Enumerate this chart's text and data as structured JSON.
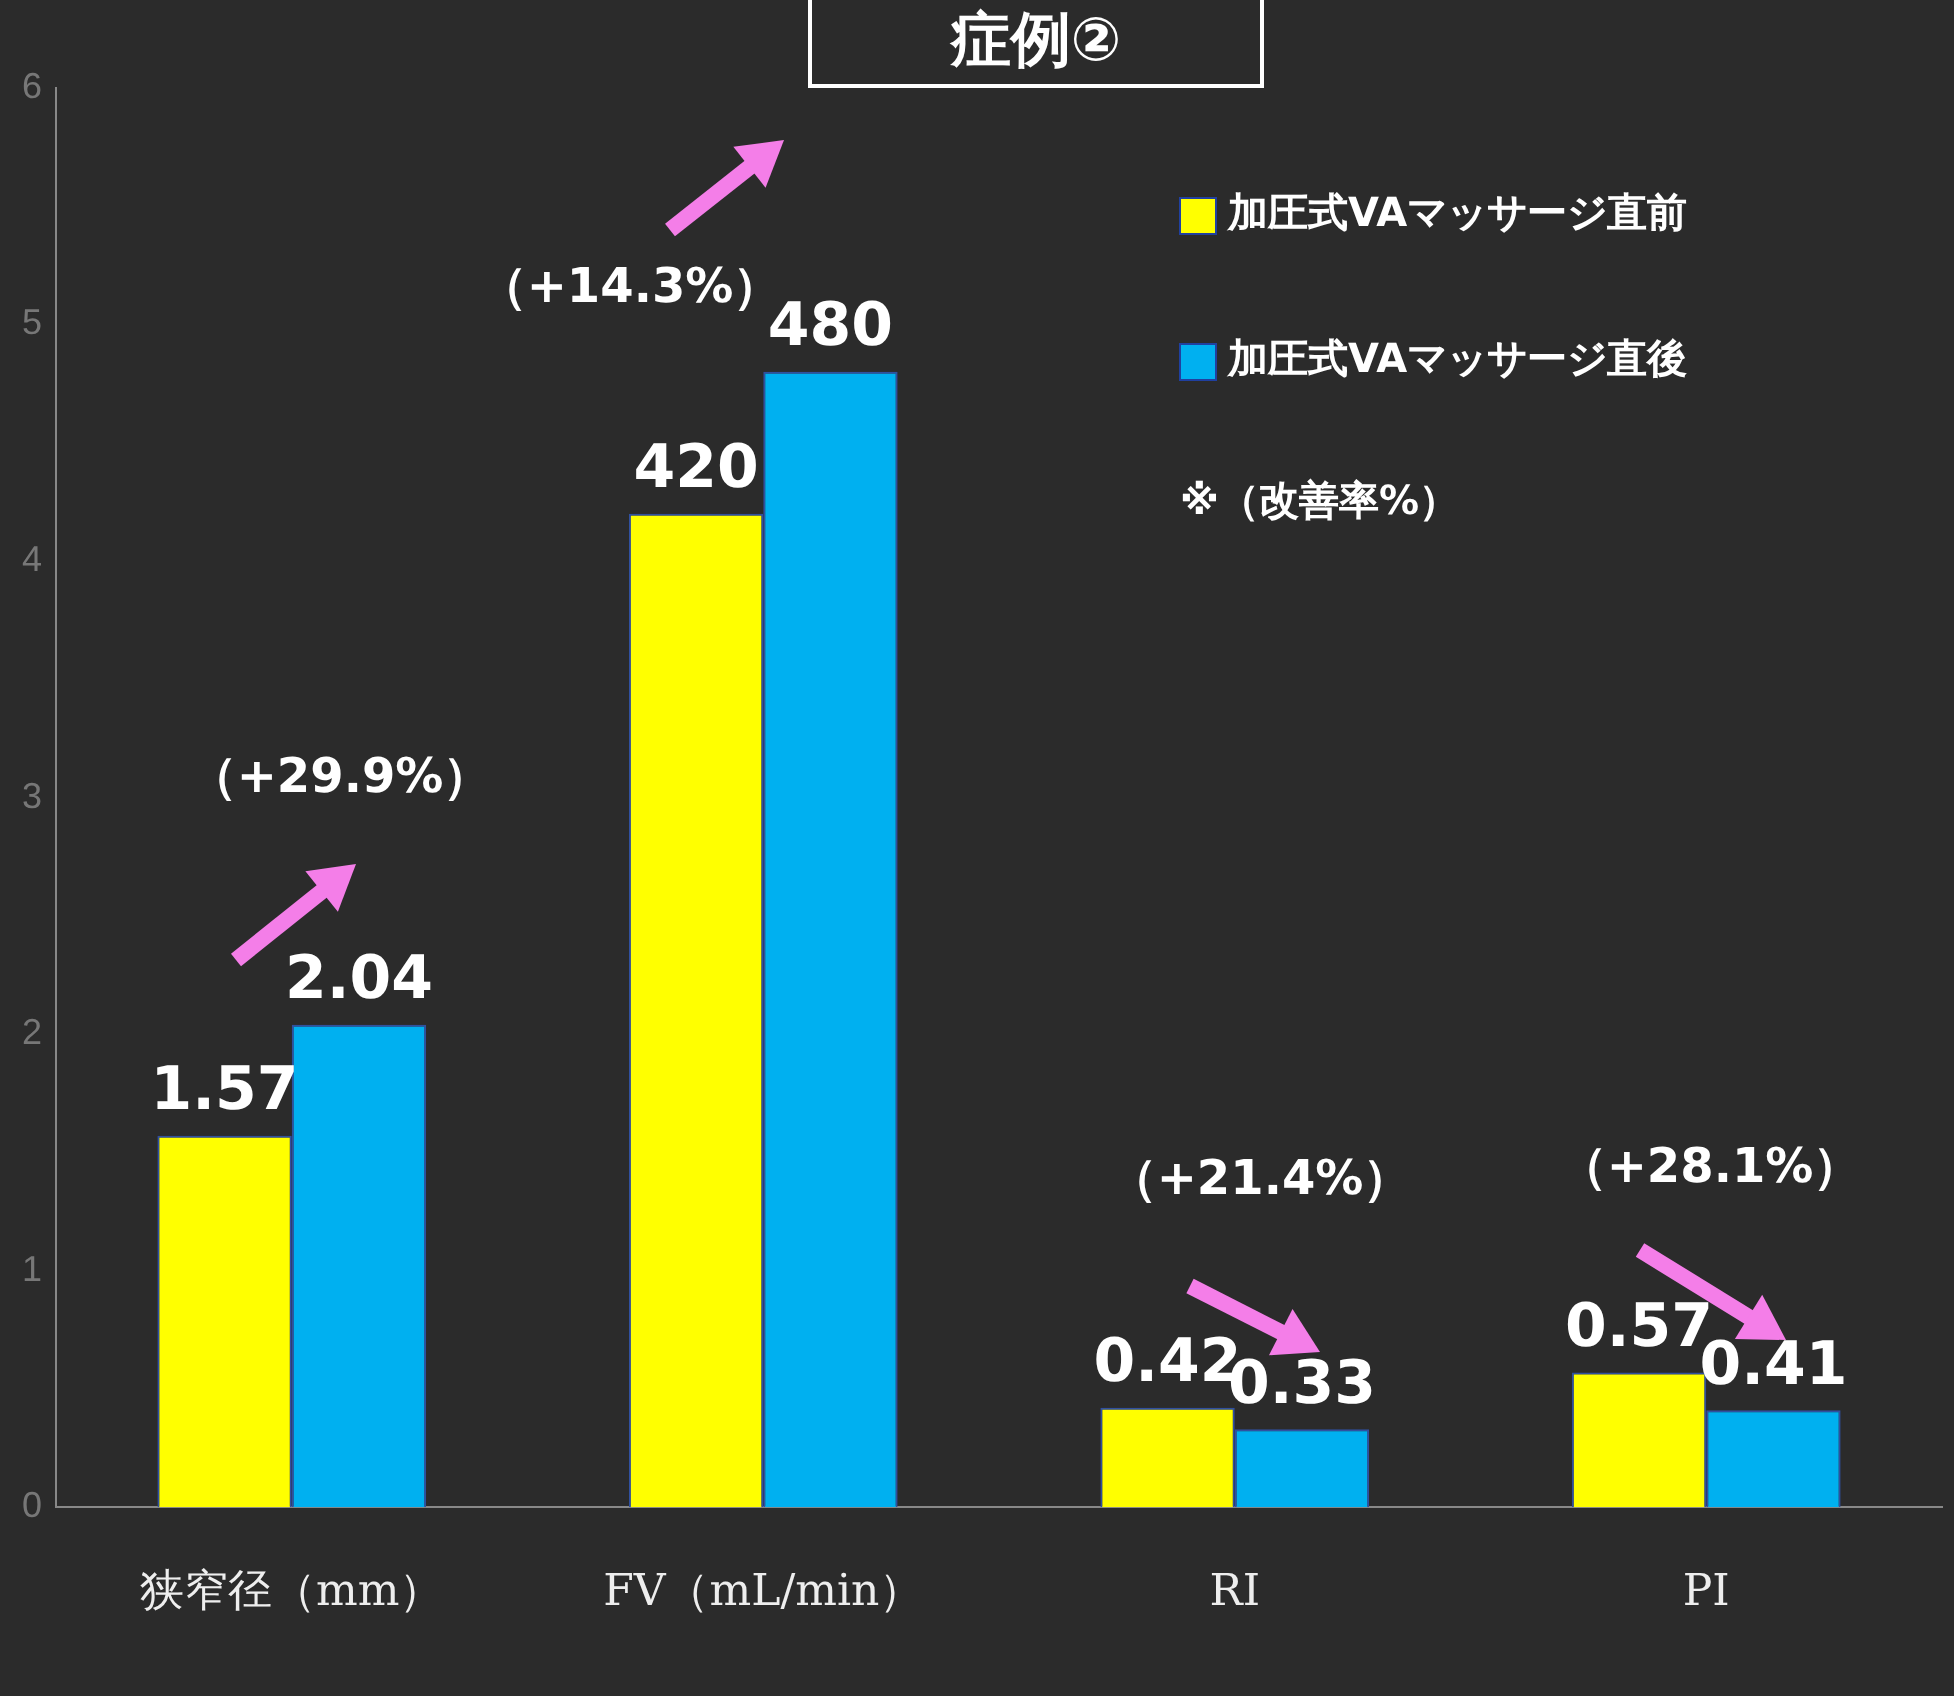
{
  "chart_data": {
    "type": "bar",
    "title": "症例②",
    "categories": [
      "狭窄径（mm）",
      "FV（mL/min）",
      "RI",
      "PI"
    ],
    "series": [
      {
        "name": "加圧式VAマッサージ直前",
        "color": "#ffff00",
        "values": [
          1.57,
          4.2,
          0.42,
          0.57
        ],
        "value_labels": [
          "1.57",
          null,
          "0.42",
          "0.57"
        ]
      },
      {
        "name": "加圧式VAマッサージ直後",
        "color": "#00b0f0",
        "values": [
          2.04,
          4.8,
          0.33,
          0.41
        ],
        "value_labels": [
          "2.04",
          null,
          "0.33",
          "0.41"
        ]
      }
    ],
    "ylim": [
      0,
      6
    ],
    "yticks": [
      0,
      1,
      2,
      3,
      4,
      5,
      6
    ],
    "grid": false,
    "legend": "top right",
    "annotations": [
      {
        "text": "420",
        "x": "FV（mL/min）",
        "y": 4.2
      },
      {
        "text": "480",
        "x": "FV（mL/min）",
        "y": 4.8
      },
      "（+29.9%）",
      "（+14.3%）",
      "（+21.4%）",
      "（+28.1%）",
      "※（改善率%）"
    ]
  }
}
